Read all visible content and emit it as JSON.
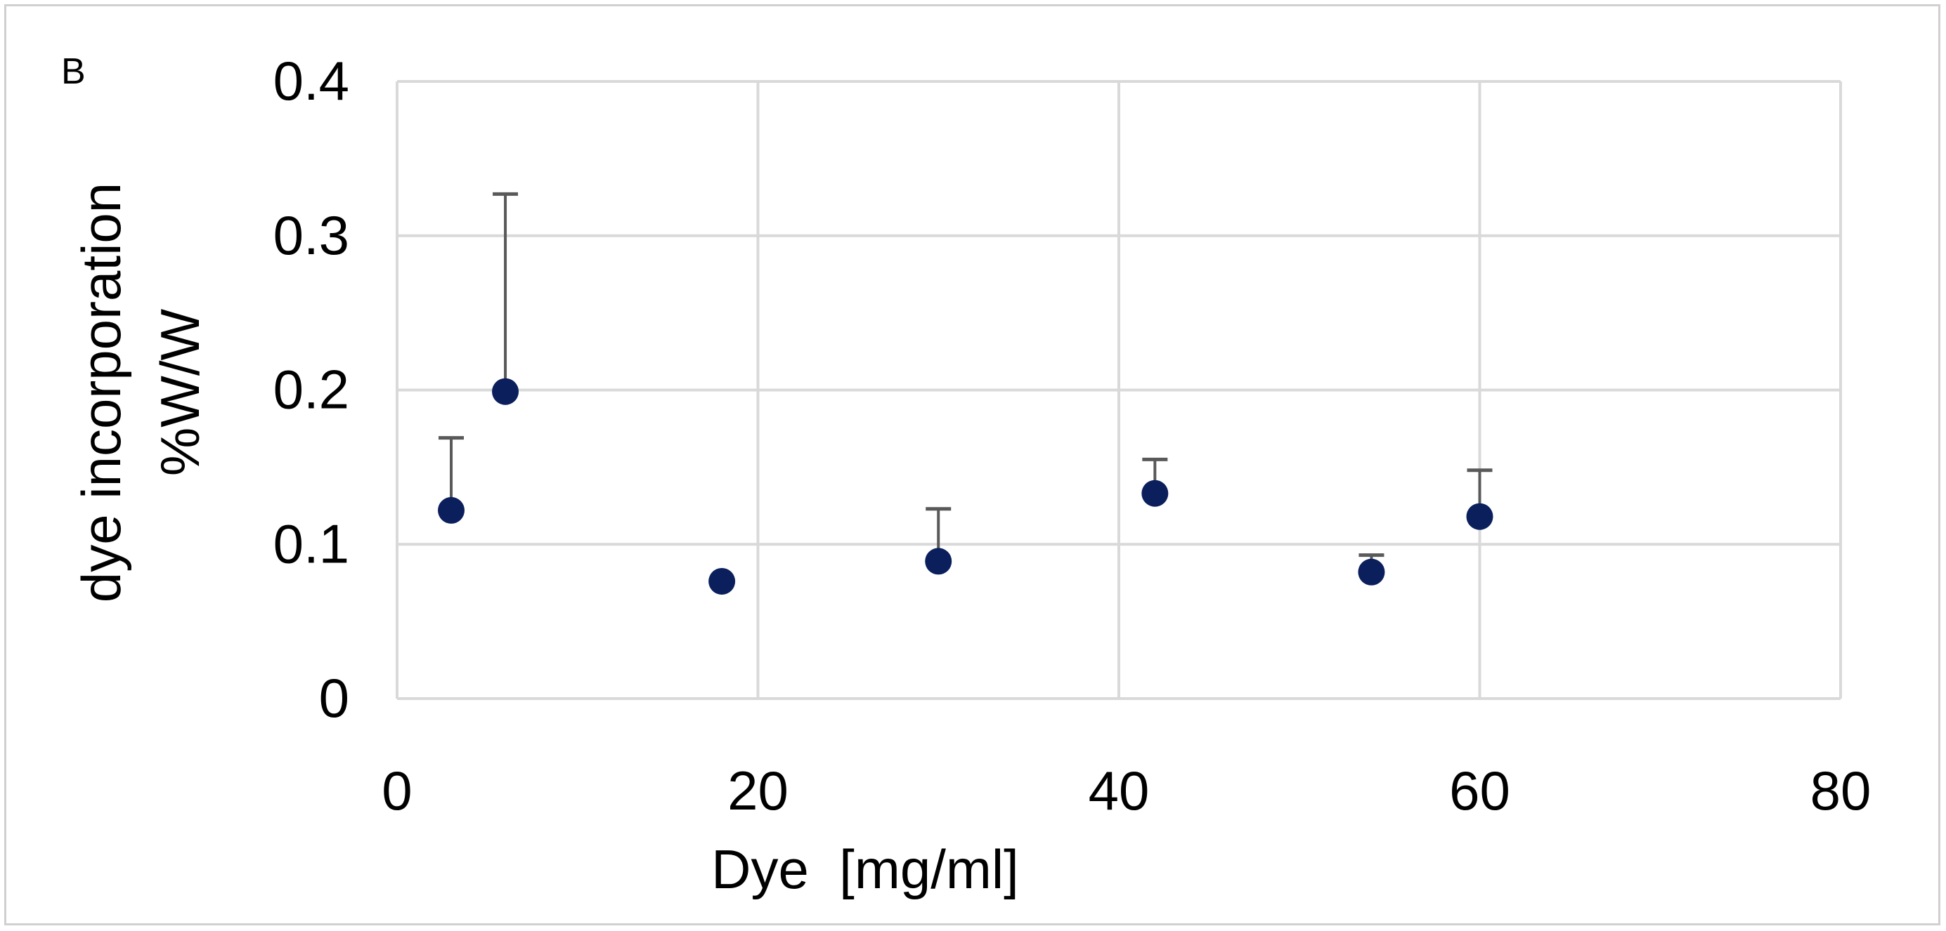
{
  "panel_label": "B",
  "chart_data": {
    "type": "scatter",
    "title": "",
    "xlabel": "Dye  [mg/ml]",
    "ylabel_line1": "dye incorporation",
    "ylabel_line2": "%W/W",
    "xlim": [
      0,
      80
    ],
    "ylim": [
      0,
      0.4
    ],
    "x_ticks": [
      0,
      20,
      40,
      60,
      80
    ],
    "x_tick_labels": [
      "0",
      "20",
      "40",
      "60",
      "80"
    ],
    "y_ticks": [
      0,
      0.1,
      0.2,
      0.3,
      0.4
    ],
    "y_tick_labels": [
      "0",
      "0.1",
      "0.2",
      "0.3",
      "0.4"
    ],
    "grid": true,
    "legend": "none",
    "series": [
      {
        "x": [
          3,
          6,
          18,
          30,
          42,
          54,
          60
        ],
        "y": [
          0.122,
          0.199,
          0.076,
          0.089,
          0.133,
          0.082,
          0.118
        ],
        "error_plus": [
          0.047,
          0.128,
          0.0,
          0.034,
          0.022,
          0.011,
          0.03
        ]
      }
    ],
    "colors": {
      "marker": "#0b1f5c",
      "error_bar": "#595959",
      "grid": "#d9d9d9"
    }
  }
}
